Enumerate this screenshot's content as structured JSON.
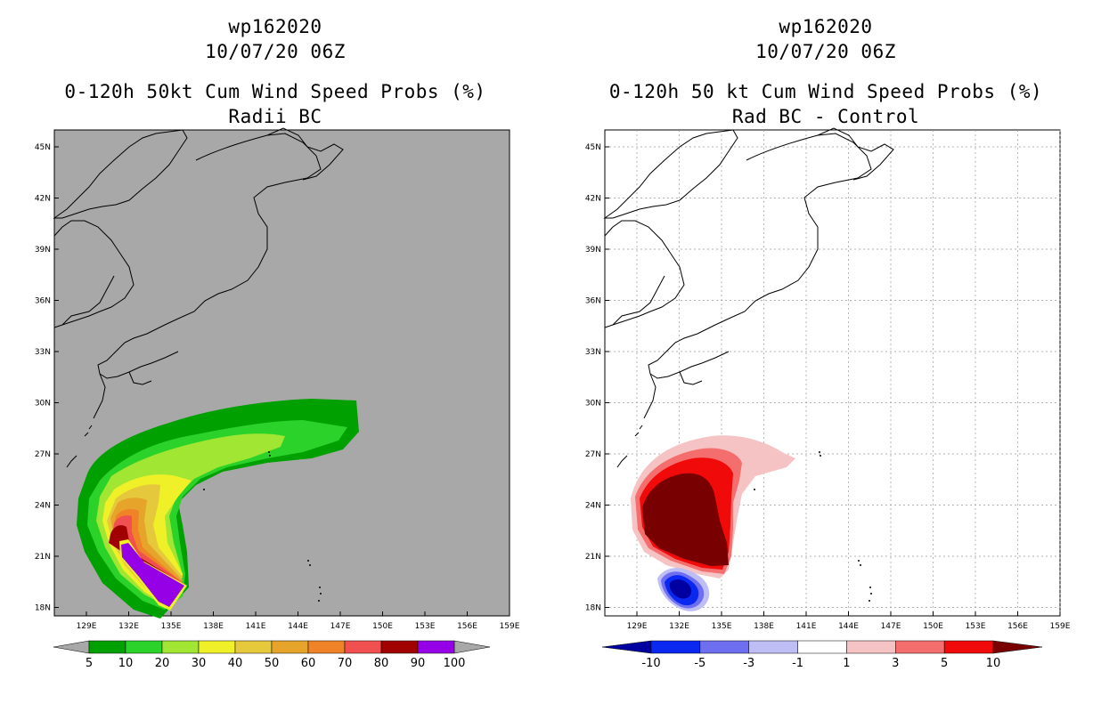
{
  "left": {
    "title1": "wp162020",
    "title2": "10/07/20 06Z",
    "title3": "0-120h 50kt Cum Wind Speed Probs (%)",
    "title4": "Radii BC",
    "background": "#a8a8a8",
    "colorbar": {
      "colors": [
        "#00a000",
        "#2ad22a",
        "#a0e632",
        "#f0f028",
        "#e6c83c",
        "#e6a52a",
        "#f08228",
        "#f05050",
        "#a00000",
        "#9600e6"
      ],
      "labels": [
        "5",
        "10",
        "20",
        "30",
        "40",
        "50",
        "60",
        "70",
        "80",
        "90",
        "100"
      ]
    }
  },
  "right": {
    "title1": "wp162020",
    "title2": "10/07/20 06Z",
    "title3": "0-120h 50 kt Cum Wind Speed Probs (%)",
    "title4": "Rad BC - Control",
    "background": "#ffffff",
    "colorbar": {
      "colors": [
        "#0000a0",
        "#0a28f0",
        "#6e6ef0",
        "#bebef5",
        "#ffffff",
        "#f5c3c3",
        "#f56e6e",
        "#f00a0a",
        "#780000"
      ],
      "labels": [
        "-10",
        "-5",
        "-3",
        "-1",
        "1",
        "3",
        "5",
        "10"
      ]
    }
  },
  "axes": {
    "lon_labels": [
      "129E",
      "132E",
      "135E",
      "138E",
      "141E",
      "144E",
      "147E",
      "150E",
      "153E",
      "156E",
      "159E"
    ],
    "lat_labels": [
      "45N",
      "42N",
      "39N",
      "36N",
      "33N",
      "30N",
      "27N",
      "24N",
      "21N",
      "18N"
    ]
  }
}
